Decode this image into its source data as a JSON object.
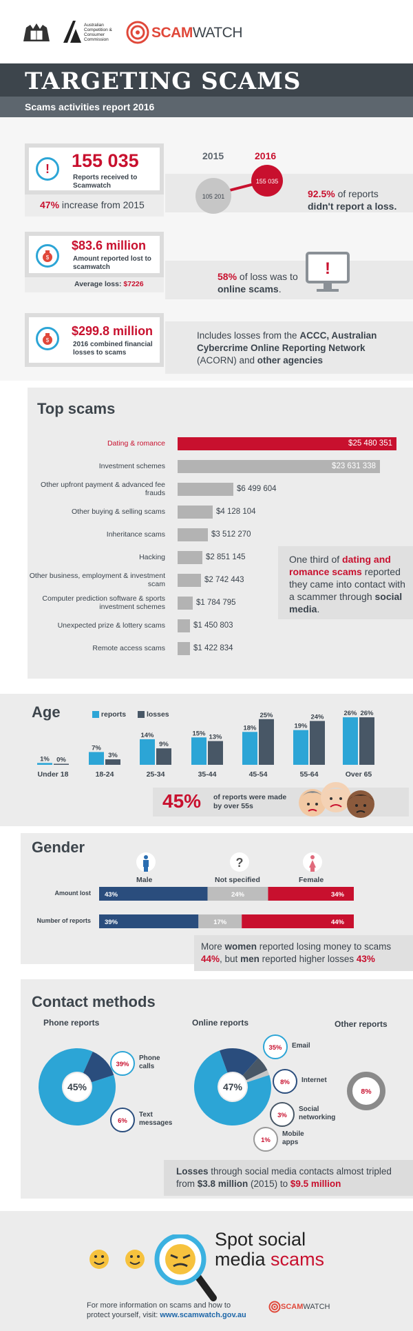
{
  "header": {
    "org_name": "Australian Competition & Consumer Commission",
    "brand": "SCAM",
    "brand2": "WATCH"
  },
  "title": "TARGETING SCAMS",
  "subtitle": "Scams activities report 2016",
  "stats": {
    "reports_number": "155 035",
    "reports_label": "Reports received to Scamwatch",
    "increase_pct": "47%",
    "increase_text": " increase from 2015",
    "year_2015": "2015",
    "year_2016": "2016",
    "value_2015": "105 201",
    "value_2016": "155 035",
    "no_loss_pct": "92.5%",
    "no_loss_text1": " of reports",
    "no_loss_text2": "didn't report a loss.",
    "lost_amount": "$83.6 million",
    "lost_label": "Amount reported lost to scamwatch",
    "avg_loss_label": "Average loss: ",
    "avg_loss_value": "$7226",
    "online_pct": "58%",
    "online_text1": " of loss was to",
    "online_text2": "online scams",
    "online_text3": ".",
    "combined_amount": "$299.8 million",
    "combined_label": "2016 combined financial losses to scams",
    "includes_1": "Includes losses from the ",
    "includes_2": "ACCC, Australian Cybercrime Online Reporting Network",
    "includes_3": " (ACORN) and ",
    "includes_4": "other agencies",
    "icon_alert": "!"
  },
  "top_scams": {
    "title": "Top scams",
    "note_1": "One third of ",
    "note_2": "dating and romance scams",
    "note_3": " reported they came into contact with a scammer through ",
    "note_4": "social media",
    "note_5": "."
  },
  "age": {
    "title": "Age",
    "legend_reports": "reports",
    "legend_losses": "losses",
    "callout_pct": "45%",
    "callout_text": "of reports were made by over 55s"
  },
  "gender": {
    "title": "Gender",
    "male": "Male",
    "unspecified": "Not specified",
    "female": "Female",
    "unspecified_icon": "?",
    "note_1": "More ",
    "note_2": "women",
    "note_3": " reported losing money to scams ",
    "note_4": "44%",
    "note_5": ", but ",
    "note_6": "men",
    "note_7": " reported higher losses ",
    "note_8": "43%"
  },
  "contact": {
    "title": "Contact methods",
    "phone_title": "Phone reports",
    "online_title": "Online reports",
    "other_title": "Other reports",
    "phone_center": "45%",
    "online_center": "47%",
    "other_value": "8%",
    "note_1": "Losses",
    "note_2": " through social media contacts almost tripled from ",
    "note_3": "$3.8 million",
    "note_4": " (2015) to ",
    "note_5": "$9.5 million"
  },
  "footer": {
    "spot_1": "Spot social",
    "spot_2": "media ",
    "spot_3": "scams",
    "info_1": "For more information on scams and how to",
    "info_2": "protect yourself, visit: ",
    "url": "www.scamwatch.gov.au"
  },
  "colors": {
    "red": "#c8102e",
    "gray_bar": "#b3b3b3",
    "blue": "#2ca5d6",
    "navy": "#2a4d7d",
    "slate": "#485766"
  },
  "chart_data": [
    {
      "type": "bar",
      "title": "Top scams",
      "categories": [
        "Dating & romance",
        "Investment schemes",
        "Other upfront payment & advanced fee frauds",
        "Other buying & selling scams",
        "Inheritance scams",
        "Hacking",
        "Other business, employment & investment scam",
        "Computer prediction software & sports investment schemes",
        "Unexpected prize & lottery scams",
        "Remote access scams"
      ],
      "values": [
        25480351,
        23631338,
        6499604,
        4128104,
        3512270,
        2851145,
        2742443,
        1784795,
        1450803,
        1422834
      ],
      "labels": [
        "$25 480 351",
        "$23 631 338",
        "$6 499 604",
        "$4 128 104",
        "$3 512 270",
        "$2 851 145",
        "$2 742 443",
        "$1 784 795",
        "$1 450 803",
        "$1 422 834"
      ],
      "highlight": "Dating & romance",
      "orientation": "horizontal"
    },
    {
      "type": "bar",
      "title": "Age",
      "categories": [
        "Under 18",
        "18-24",
        "25-34",
        "35-44",
        "45-54",
        "55-64",
        "Over 65"
      ],
      "series": [
        {
          "name": "reports",
          "values": [
            1,
            7,
            14,
            15,
            18,
            19,
            26
          ],
          "color": "#2ca5d6"
        },
        {
          "name": "losses",
          "values": [
            0,
            3,
            9,
            13,
            25,
            24,
            26
          ],
          "color": "#485766"
        }
      ],
      "unit": "%"
    },
    {
      "type": "bar",
      "title": "Gender",
      "stacked": true,
      "categories": [
        "Amount lost",
        "Number of reports"
      ],
      "series": [
        {
          "name": "Male",
          "values": [
            43,
            39
          ],
          "color": "#2a4d7d"
        },
        {
          "name": "Not specified",
          "values": [
            24,
            17
          ],
          "color": "#bdbdbd"
        },
        {
          "name": "Female",
          "values": [
            34,
            44
          ],
          "color": "#c8102e"
        }
      ],
      "unit": "%"
    },
    {
      "type": "pie",
      "title": "Phone reports",
      "total": 45,
      "slices": [
        {
          "label": "Phone calls",
          "value": 39
        },
        {
          "label": "Text messages",
          "value": 6
        }
      ],
      "unit": "%"
    },
    {
      "type": "pie",
      "title": "Online reports",
      "total": 47,
      "slices": [
        {
          "label": "Email",
          "value": 35
        },
        {
          "label": "Internet",
          "value": 8
        },
        {
          "label": "Social networking",
          "value": 3
        },
        {
          "label": "Mobile apps",
          "value": 1
        }
      ],
      "unit": "%"
    },
    {
      "type": "pie",
      "title": "Other reports",
      "slices": [
        {
          "label": "Other reports",
          "value": 8
        }
      ],
      "unit": "%"
    }
  ]
}
